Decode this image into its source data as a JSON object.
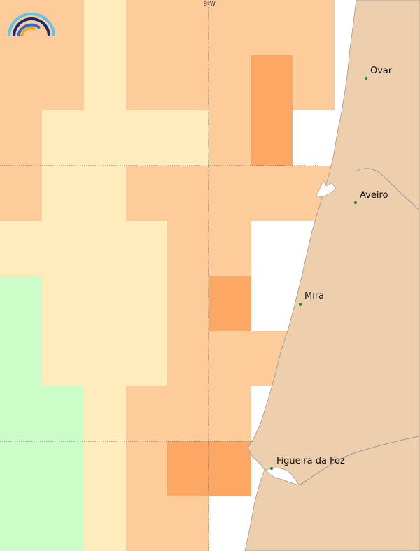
{
  "map": {
    "meridian_label": "9ºW",
    "legend_colors": {
      "green": "#ccfcc8",
      "yellow": "#feecbd",
      "light_orange": "#fecb9a",
      "orange": "#fda764",
      "land": "#edcfad",
      "sea": "#ffffff"
    },
    "grid": {
      "rows": [
        [
          "o",
          "o",
          "y",
          "o",
          "o",
          "o",
          "o",
          "o"
        ],
        [
          "o",
          "o",
          "y",
          "o",
          "o",
          "o",
          "O",
          "o"
        ],
        [
          "o",
          "y",
          "y",
          "y",
          "y",
          "o",
          "O",
          "w"
        ],
        [
          "o",
          "y",
          "y",
          "o",
          "o",
          "o",
          "o",
          "o"
        ],
        [
          "y",
          "y",
          "y",
          "y",
          "o",
          "o",
          "w",
          "w"
        ],
        [
          "g",
          "y",
          "y",
          "y",
          "o",
          "O",
          "w",
          "w"
        ],
        [
          "g",
          "y",
          "y",
          "y",
          "o",
          "o",
          "o",
          "w"
        ],
        [
          "g",
          "g",
          "y",
          "o",
          "o",
          "o",
          "w",
          "w"
        ],
        [
          "g",
          "g",
          "y",
          "o",
          "O",
          "O",
          "w",
          "w"
        ],
        [
          "g",
          "g",
          "y",
          "o",
          "o",
          "w",
          "w",
          "w"
        ]
      ]
    },
    "cities": [
      {
        "name": "Ovar"
      },
      {
        "name": "Aveiro"
      },
      {
        "name": "Mira"
      },
      {
        "name": "Figueira da Foz"
      }
    ]
  }
}
